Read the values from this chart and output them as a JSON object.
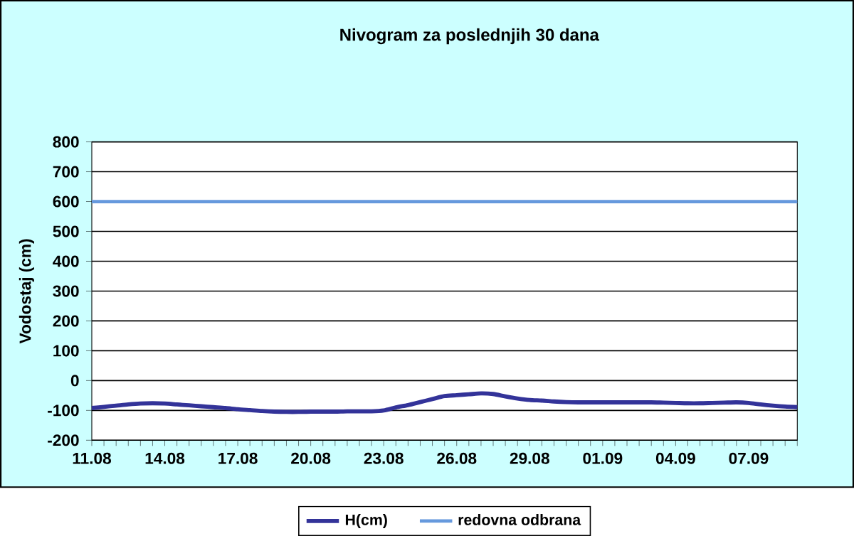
{
  "chart_data": {
    "type": "line",
    "title": "Nivogram za poslednjih 30 dana",
    "ylabel": "Vodostaj (cm)",
    "categories": [
      "11.08",
      null,
      null,
      null,
      null,
      null,
      "14.08",
      null,
      null,
      null,
      null,
      null,
      "17.08",
      null,
      null,
      null,
      null,
      null,
      "20.08",
      null,
      null,
      null,
      null,
      null,
      "23.08",
      null,
      null,
      null,
      null,
      null,
      "26.08",
      null,
      null,
      null,
      null,
      null,
      "29.08",
      null,
      null,
      null,
      null,
      null,
      "01.09",
      null,
      null,
      null,
      null,
      null,
      "04.09",
      null,
      null,
      null,
      null,
      null,
      "07.09",
      null,
      null,
      null,
      null
    ],
    "series": [
      {
        "name": "H(cm)",
        "color": "#333399",
        "values": [
          -92,
          -88,
          -84,
          -80,
          -77,
          -76,
          -77,
          -80,
          -83,
          -86,
          -89,
          -92,
          -96,
          -99,
          -102,
          -104,
          -105,
          -105,
          -104,
          -104,
          -104,
          -103,
          -103,
          -103,
          -100,
          -90,
          -82,
          -72,
          -62,
          -52,
          -49,
          -46,
          -43,
          -45,
          -53,
          -60,
          -65,
          -67,
          -70,
          -72,
          -73,
          -73,
          -73,
          -73,
          -73,
          -73,
          -73,
          -74,
          -75,
          -76,
          -76,
          -75,
          -74,
          -73,
          -75,
          -80,
          -84,
          -87,
          -89
        ]
      }
    ],
    "ref_lines": [
      {
        "axis": "y",
        "value": 600,
        "label": "redovna odbrana",
        "color": "#6699dd"
      }
    ],
    "ylim": [
      -200,
      800
    ],
    "yticks": [
      -200,
      -100,
      0,
      100,
      200,
      300,
      400,
      500,
      600,
      700,
      800
    ],
    "grid": "y",
    "legend": "bottom"
  }
}
